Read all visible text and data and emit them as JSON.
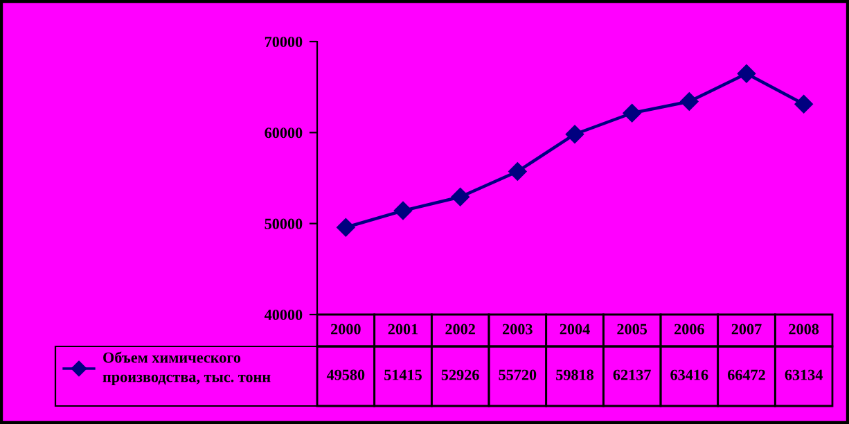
{
  "chart_data": {
    "type": "line",
    "categories": [
      "2000",
      "2001",
      "2002",
      "2003",
      "2004",
      "2005",
      "2006",
      "2007",
      "2008"
    ],
    "series": [
      {
        "name": "Объем химического производства, тыс. тонн",
        "color": "#000080",
        "values": [
          49580,
          51415,
          52926,
          55720,
          59818,
          62137,
          63416,
          66472,
          63134
        ]
      }
    ],
    "ylim": [
      40000,
      70000
    ],
    "yticks": [
      40000,
      50000,
      60000,
      70000
    ],
    "marker": "diamond",
    "line_style": "solid",
    "grid": false,
    "legend": "bottom",
    "data_labels": true
  }
}
